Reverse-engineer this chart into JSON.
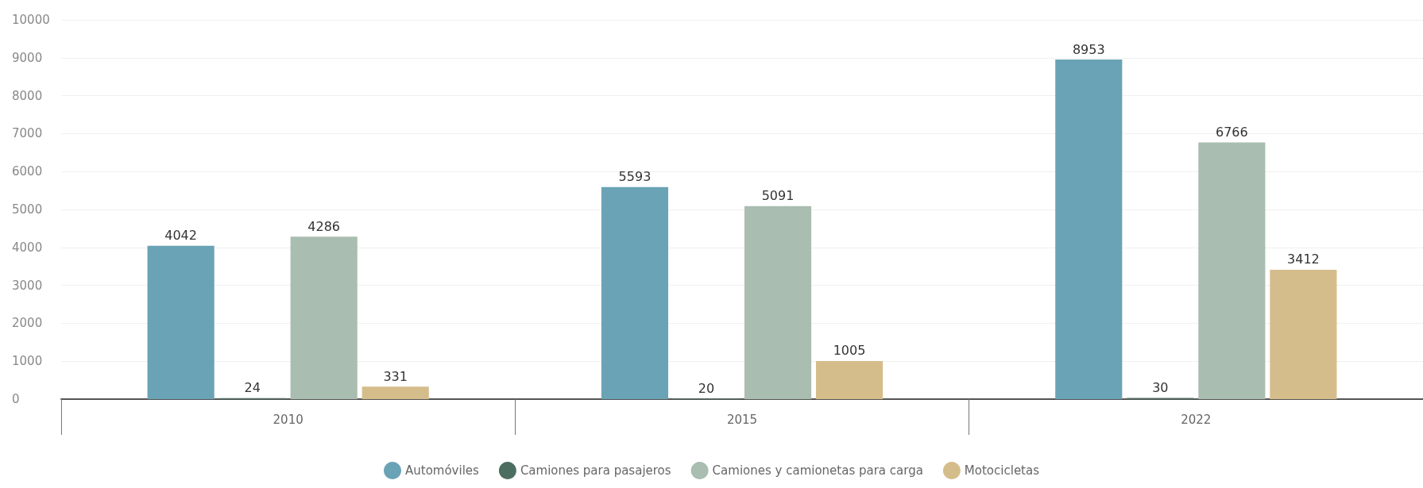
{
  "chart_data": {
    "type": "bar",
    "categories": [
      "2010",
      "2015",
      "2022"
    ],
    "series": [
      {
        "name": "Automóviles",
        "color": "#6aa3b5",
        "values": [
          4042,
          5593,
          8953
        ]
      },
      {
        "name": "Camiones para pasajeros",
        "color": "#4c6e60",
        "values": [
          24,
          20,
          30
        ]
      },
      {
        "name": "Camiones y camionetas para carga",
        "color": "#a9bdb0",
        "values": [
          4286,
          5091,
          6766
        ]
      },
      {
        "name": "Motocicletas",
        "color": "#d5bd8b",
        "values": [
          331,
          1005,
          3412
        ]
      }
    ],
    "ylim": [
      0,
      10000
    ],
    "yticks": [
      0,
      1000,
      2000,
      3000,
      4000,
      5000,
      6000,
      7000,
      8000,
      9000,
      10000
    ],
    "grid": "y",
    "legend": "bottom",
    "data_labels": true
  }
}
